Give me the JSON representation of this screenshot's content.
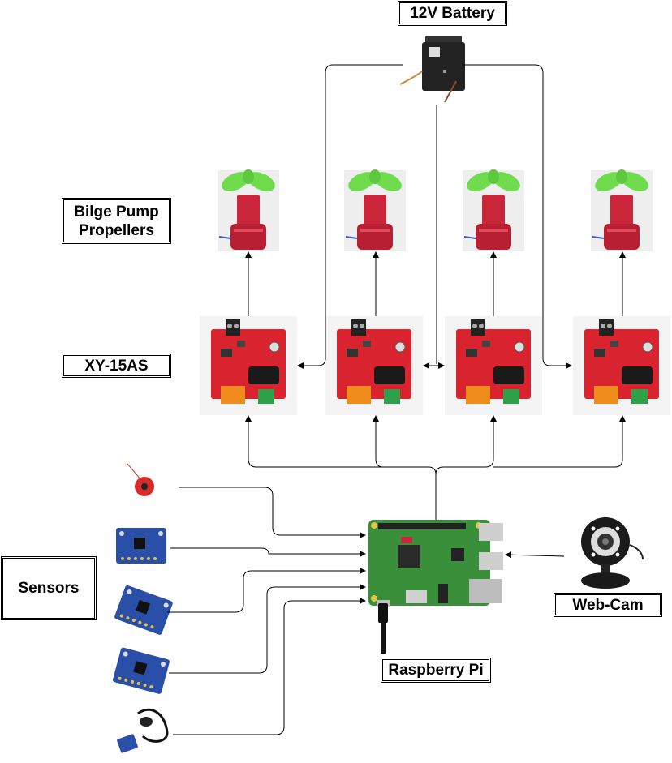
{
  "labels": {
    "battery": "12V Battery",
    "propellers": "Bilge Pump Propellers",
    "driver": "XY-15AS",
    "sensors": "Sensors",
    "webcam": "Web-Cam",
    "raspberry_pi": "Raspberry Pi"
  },
  "components": {
    "battery": {
      "icon": "battery-icon"
    },
    "propeller": {
      "count": 4,
      "icon": "propeller-icon"
    },
    "driver": {
      "count": 4,
      "icon": "motor-driver-board-icon"
    },
    "sensors": [
      "buzzer-icon",
      "sensor-board-icon",
      "sensor-board-icon",
      "sensor-board-icon",
      "sensor-probe-icon"
    ],
    "webcam": {
      "icon": "webcam-icon"
    },
    "raspberry_pi": {
      "icon": "raspberry-pi-board-icon"
    }
  },
  "colors": {
    "line": "#000000",
    "propeller_blade": "#6edc4c",
    "propeller_body": "#c9263a",
    "board_red": "#d9232e",
    "terminal_orange": "#f08c1c",
    "terminal_green": "#2ea04a",
    "pi_green": "#3a8f3a",
    "sensor_blue": "#2a4fa8"
  }
}
